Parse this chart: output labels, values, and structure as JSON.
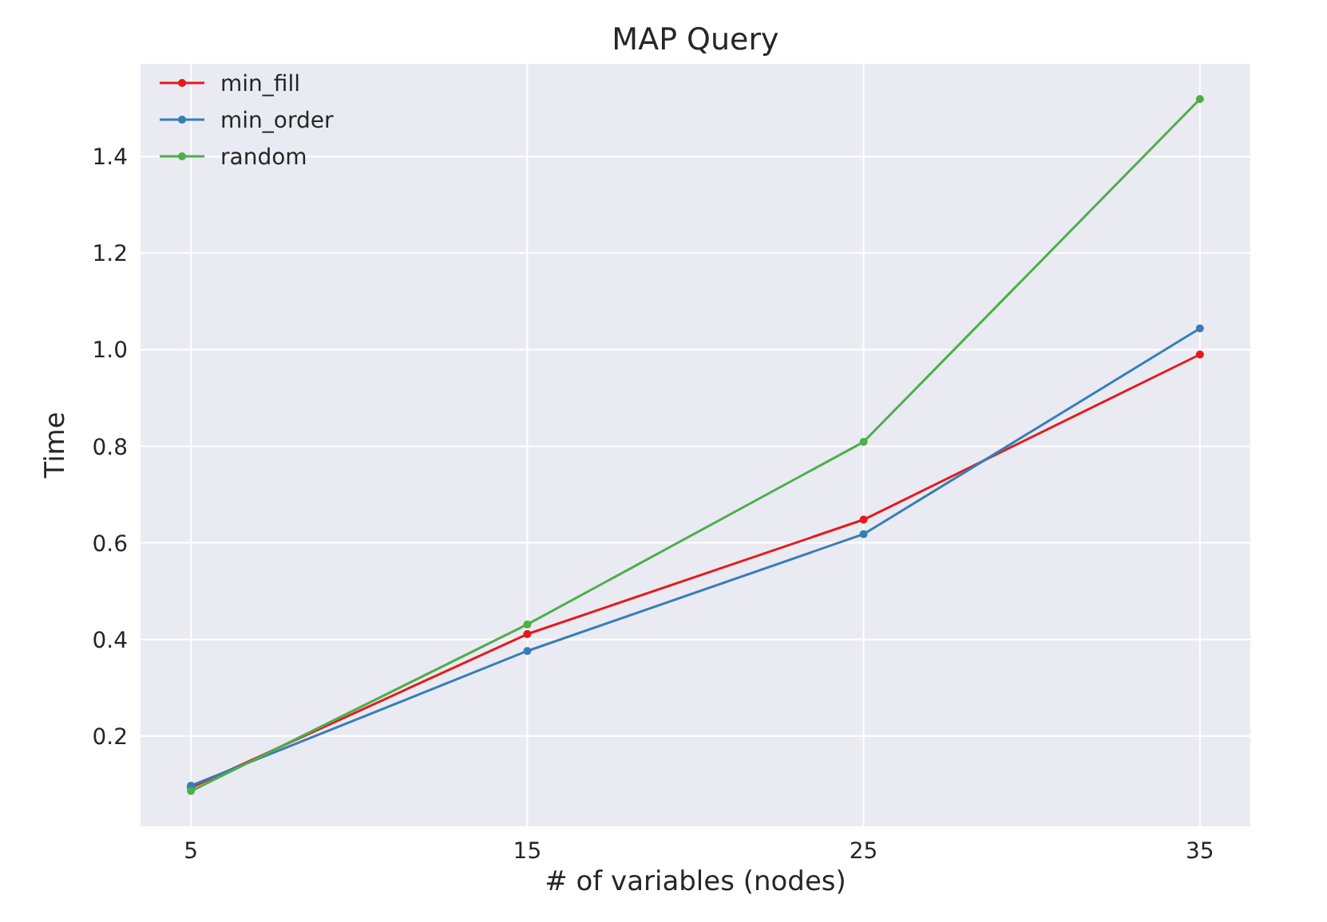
{
  "chart_data": {
    "type": "line",
    "title": "MAP Query",
    "xlabel": "# of variables (nodes)",
    "ylabel": "Time",
    "x": [
      5,
      15,
      25,
      35
    ],
    "series": [
      {
        "name": "min_fill",
        "color": "#e41a1c",
        "values": [
          0.093,
          0.411,
          0.648,
          0.99
        ]
      },
      {
        "name": "min_order",
        "color": "#377eb8",
        "values": [
          0.097,
          0.376,
          0.618,
          1.044
        ]
      },
      {
        "name": "random",
        "color": "#4daf4a",
        "values": [
          0.086,
          0.431,
          0.809,
          1.519
        ]
      }
    ],
    "xlim": [
      3.5,
      36.5
    ],
    "ylim": [
      0.013,
      1.592
    ],
    "xticks": [
      5,
      15,
      25,
      35
    ],
    "yticks": [
      0.2,
      0.4,
      0.6,
      0.8,
      {
        "value": 1,
        "label": "1.0"
      },
      1.2,
      1.4
    ],
    "grid": true,
    "legend": "top left",
    "marker": "circle",
    "line_style": "solid"
  }
}
